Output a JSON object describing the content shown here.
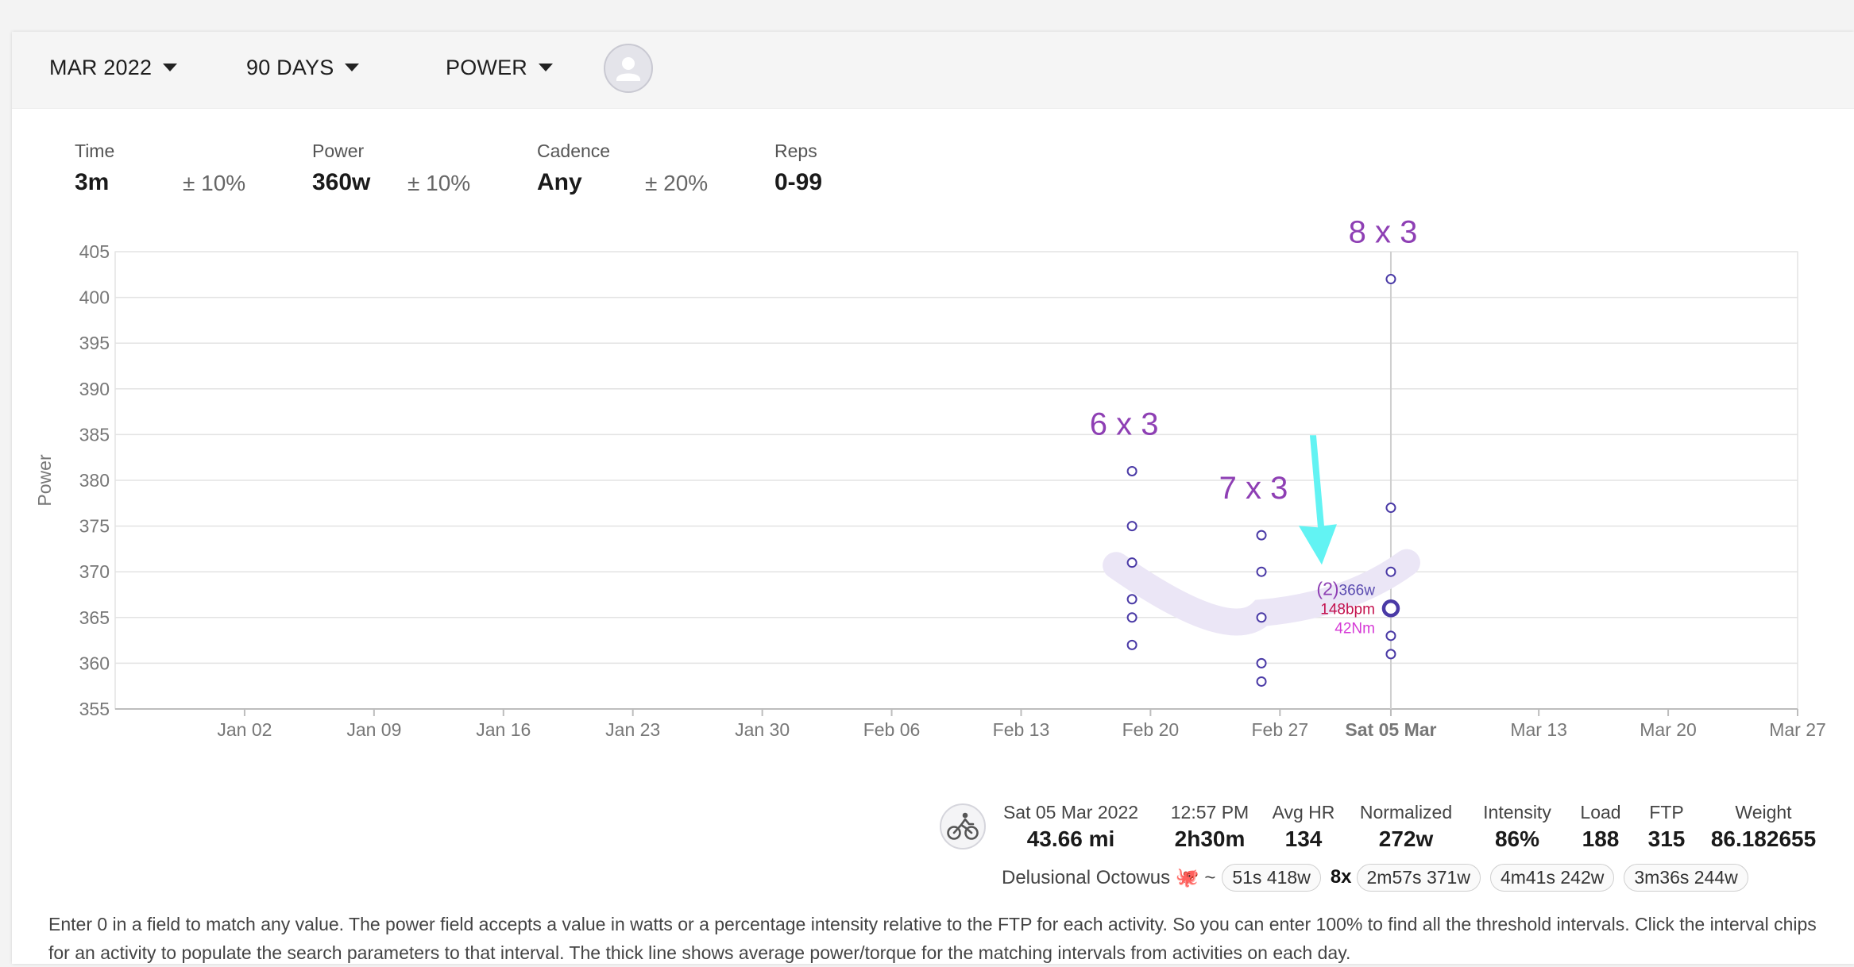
{
  "toolbar": {
    "month": "MAR 2022",
    "range": "90 DAYS",
    "metric": "POWER"
  },
  "params": {
    "time": {
      "label": "Time",
      "value": "3m",
      "tolerance": "± 10%"
    },
    "power": {
      "label": "Power",
      "value": "360w",
      "tolerance": "± 10%"
    },
    "cadence": {
      "label": "Cadence",
      "value": "Any",
      "tolerance": "± 20%"
    },
    "reps": {
      "label": "Reps",
      "value": "0-99"
    }
  },
  "colors": {
    "point": "#4a3aa6",
    "avg_band": "#ebe6f6",
    "annotation": "#8e3fb4",
    "arrow": "#62f3f3",
    "hr": "#c4124e",
    "torque": "#d63ad6"
  },
  "chart_data": {
    "type": "scatter",
    "ylabel": "Power",
    "xlabel": "",
    "ylim": [
      355,
      405
    ],
    "yticks": [
      355,
      360,
      365,
      370,
      375,
      380,
      385,
      390,
      395,
      400,
      405
    ],
    "xlim": [
      "2021-12-26",
      "2022-03-27"
    ],
    "xticks": [
      {
        "date": "2022-01-02",
        "label": "Jan 02"
      },
      {
        "date": "2022-01-09",
        "label": "Jan 09"
      },
      {
        "date": "2022-01-16",
        "label": "Jan 16"
      },
      {
        "date": "2022-01-23",
        "label": "Jan 23"
      },
      {
        "date": "2022-01-30",
        "label": "Jan 30"
      },
      {
        "date": "2022-02-06",
        "label": "Feb 06"
      },
      {
        "date": "2022-02-13",
        "label": "Feb 13"
      },
      {
        "date": "2022-02-20",
        "label": "Feb 20"
      },
      {
        "date": "2022-02-27",
        "label": "Feb 27"
      },
      {
        "date": "2022-03-05",
        "label": "Sat 05 Mar",
        "highlight": true
      },
      {
        "date": "2022-03-13",
        "label": "Mar 13"
      },
      {
        "date": "2022-03-20",
        "label": "Mar 20"
      },
      {
        "date": "2022-03-27",
        "label": "Mar 27"
      }
    ],
    "grid": true,
    "series": [
      {
        "date": "2022-02-19",
        "values": [
          381,
          375,
          371,
          367,
          365,
          362
        ]
      },
      {
        "date": "2022-02-26",
        "values": [
          374,
          370,
          365,
          360,
          358
        ]
      },
      {
        "date": "2022-03-05",
        "values": [
          402,
          377,
          370,
          366,
          363,
          361
        ]
      }
    ],
    "average_line": [
      {
        "date": "2022-02-19",
        "value": 370
      },
      {
        "date": "2022-02-26",
        "value": 365.5
      },
      {
        "date": "2022-03-05",
        "value": 371
      }
    ],
    "annotations": [
      {
        "date": "2022-02-19",
        "text": "6 x 3"
      },
      {
        "date": "2022-02-26",
        "text": "7 x 3"
      },
      {
        "date": "2022-03-05",
        "text": "8 x 3"
      }
    ],
    "hover": {
      "date": "2022-03-05",
      "value": 366,
      "count_label": "(2)",
      "power_label": "366w",
      "hr_label": "148bpm",
      "torque_label": "42Nm"
    }
  },
  "activity": {
    "date": "Sat 05 Mar 2022",
    "distance": "43.66 mi",
    "time_label": "12:57 PM",
    "duration": "2h30m",
    "stats": [
      {
        "label": "Avg HR",
        "value": "134"
      },
      {
        "label": "Normalized",
        "value": "272w"
      },
      {
        "label": "Intensity",
        "value": "86%"
      },
      {
        "label": "Load",
        "value": "188"
      },
      {
        "label": "FTP",
        "value": "315"
      },
      {
        "label": "Weight",
        "value": "86.182655"
      }
    ],
    "name": "Delusional Octowus 🐙 ~",
    "chips": [
      {
        "label": "51s 418w"
      },
      {
        "multiplier": "8x",
        "label": "2m57s 371w"
      },
      {
        "label": "4m41s 242w"
      },
      {
        "label": "3m36s 244w"
      }
    ]
  },
  "help_text": "Enter 0 in a field to match any value. The power field accepts a value in watts or a percentage intensity relative to the FTP for each activity. So you can enter 100% to find all the threshold intervals. Click the interval chips for an activity to populate the search parameters to that interval. The thick line shows average power/torque for the matching intervals from activities on each day."
}
